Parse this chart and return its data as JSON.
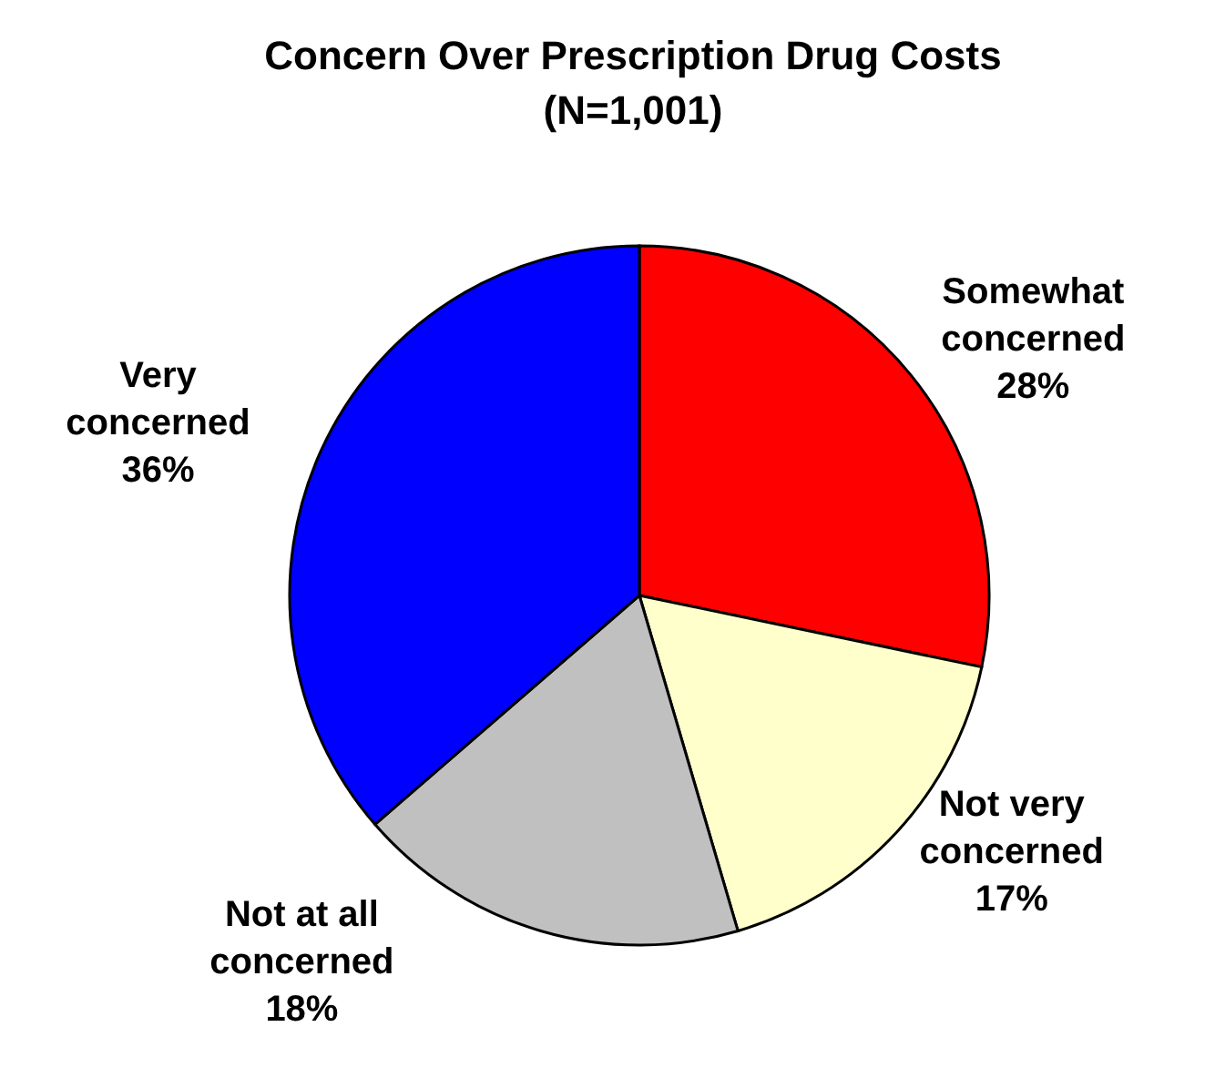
{
  "chart_data": {
    "type": "pie",
    "title": "Concern Over Prescription Drug Costs",
    "subtitle": "(N=1,001)",
    "categories": [
      "Somewhat concerned",
      "Not very concerned",
      "Not at all concerned",
      "Very concerned"
    ],
    "values": [
      28,
      17,
      18,
      36
    ],
    "value_labels": [
      "28%",
      "17%",
      "18%",
      "36%"
    ],
    "colors": [
      "#ff0000",
      "#ffffcc",
      "#c0c0c0",
      "#0000ff"
    ],
    "legend": false
  }
}
